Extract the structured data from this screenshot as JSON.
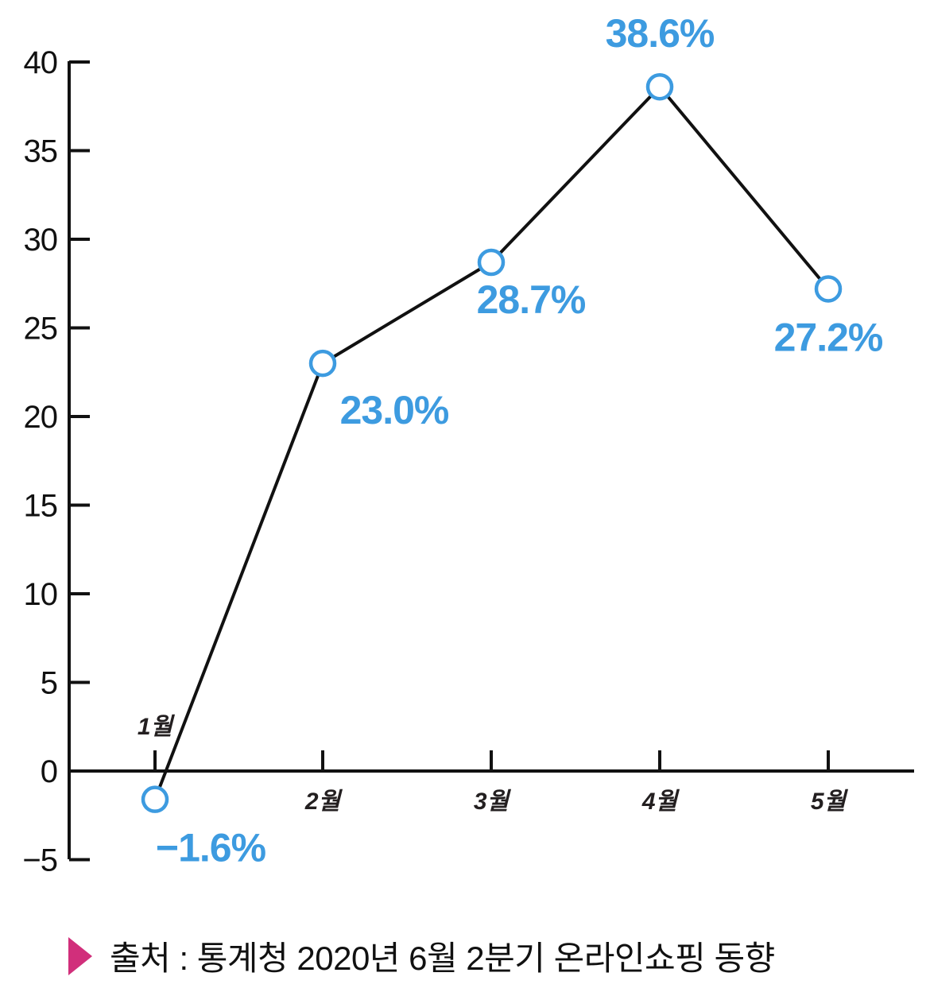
{
  "chart_data": {
    "type": "line",
    "categories": [
      "1월",
      "2월",
      "3월",
      "4월",
      "5월"
    ],
    "series": [
      {
        "values": [
          -1.6,
          23.0,
          28.7,
          38.6,
          27.2
        ]
      }
    ],
    "data_labels": [
      "−1.6%",
      "23.0%",
      "28.7%",
      "38.6%",
      "27.2%"
    ],
    "y_ticks": [
      40,
      35,
      30,
      25,
      20,
      15,
      10,
      5,
      0,
      -5
    ],
    "y_tick_labels": [
      "40",
      "35",
      "30",
      "25",
      "20",
      "15",
      "10",
      "5",
      "0",
      "−5"
    ],
    "ylim": [
      -5,
      40
    ],
    "grid": false,
    "colors": {
      "line": "#111111",
      "marker": "#3d9be0",
      "label": "#3d9be0",
      "axis": "#111111"
    }
  },
  "source": {
    "text": "출처 : 통계청 2020년 6월 2분기 온라인쇼핑 동향",
    "marker_color": "#d12f7b"
  }
}
